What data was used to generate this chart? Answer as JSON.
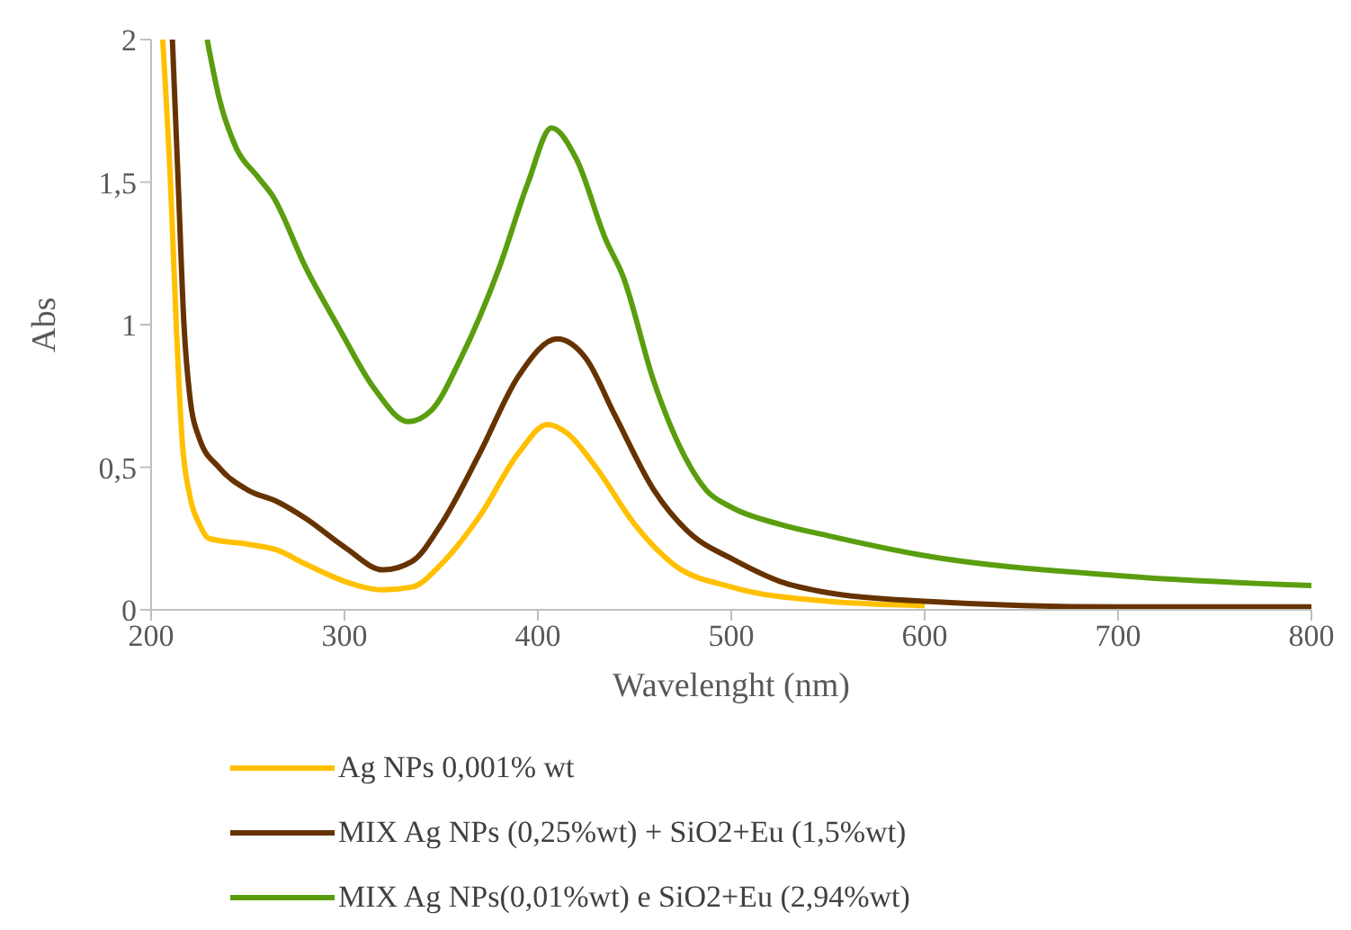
{
  "chart_data": {
    "type": "line",
    "xlabel": "Wavelenght (nm)",
    "ylabel": "Abs",
    "xlim": [
      200,
      800
    ],
    "xticks": [
      200,
      300,
      400,
      500,
      600,
      700,
      800
    ],
    "ylim": [
      0,
      2
    ],
    "yticks": [
      0,
      {
        "value": 0.5,
        "label": "0,5"
      },
      1,
      {
        "value": 1.5,
        "label": "1,5"
      },
      2
    ],
    "grid": false,
    "legend": "bottom",
    "marker": "none",
    "line_style": "solid",
    "series": [
      {
        "name": "Ag NPs 0,001% wt",
        "color": "#ffc000",
        "x": [
          206,
          210,
          213,
          216,
          220,
          225,
          230,
          250,
          265,
          280,
          300,
          320,
          335,
          350,
          370,
          390,
          405,
          415,
          430,
          450,
          470,
          500,
          550,
          600
        ],
        "values": [
          2,
          1.5,
          1.0,
          0.6,
          0.4,
          0.3,
          0.25,
          0.23,
          0.21,
          0.16,
          0.1,
          0.07,
          0.08,
          0.16,
          0.33,
          0.55,
          0.65,
          0.62,
          0.5,
          0.3,
          0.16,
          0.08,
          0.03,
          0.015
        ]
      },
      {
        "name": "MIX Ag NPs (0,25%wt) + SiO2+Eu (1,5%wt)",
        "color": "#663300",
        "x": [
          211,
          214,
          217,
          220,
          225,
          235,
          250,
          265,
          280,
          300,
          320,
          335,
          350,
          370,
          390,
          410,
          425,
          440,
          460,
          480,
          500,
          525,
          550,
          600,
          700,
          800
        ],
        "values": [
          2,
          1.5,
          1.0,
          0.75,
          0.6,
          0.5,
          0.42,
          0.38,
          0.32,
          0.22,
          0.14,
          0.17,
          0.3,
          0.55,
          0.82,
          0.95,
          0.88,
          0.68,
          0.42,
          0.26,
          0.18,
          0.1,
          0.06,
          0.03,
          0.01,
          0.01
        ]
      },
      {
        "name": "MIX Ag NPs(0,01%wt) e SiO2+Eu (2,94%wt)",
        "color": "#5a9e0f",
        "x": [
          229,
          235,
          244,
          255,
          263,
          280,
          297,
          315,
          333,
          345,
          360,
          380,
          395,
          407,
          420,
          435,
          444,
          460,
          475,
          487,
          500,
          525,
          550,
          600,
          700,
          800
        ],
        "values": [
          2,
          1.8,
          1.62,
          1.52,
          1.45,
          1.2,
          0.99,
          0.78,
          0.66,
          0.7,
          0.88,
          1.2,
          1.5,
          1.69,
          1.58,
          1.3,
          1.17,
          0.8,
          0.55,
          0.42,
          0.36,
          0.3,
          0.26,
          0.19,
          0.12,
          0.085
        ]
      }
    ]
  }
}
